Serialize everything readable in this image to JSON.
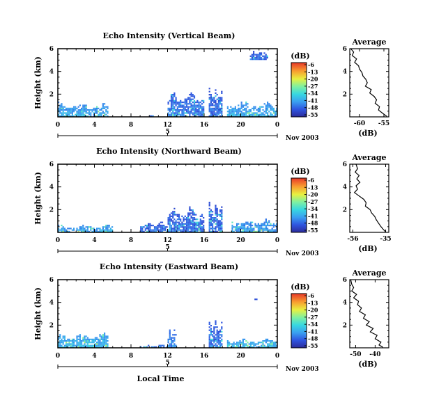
{
  "chart_data": [
    {
      "type": "heatmap",
      "title": "Echo Intensity (Vertical Beam)",
      "ylabel": "Height (km)",
      "x_ticks": [
        "0",
        "4",
        "8",
        "12",
        "16",
        "20",
        "0"
      ],
      "y_ticks": [
        "6",
        "4",
        "2"
      ],
      "xlim": [
        0,
        24
      ],
      "ylim": [
        0,
        6
      ],
      "date_marker": "5",
      "date_label": "Nov 2003",
      "colorbar": {
        "label": "(dB)",
        "ticks": [
          "-6",
          "-13",
          "-20",
          "-27",
          "-34",
          "-41",
          "-48",
          "-55"
        ]
      },
      "echo_regions": [
        {
          "x": [
            0,
            5.5
          ],
          "y": [
            0,
            1.5
          ],
          "level": 0.22
        },
        {
          "x": [
            10,
            10.5
          ],
          "y": [
            0,
            0.4
          ],
          "level": 0.15
        },
        {
          "x": [
            12,
            16
          ],
          "y": [
            0,
            2.6
          ],
          "level": 0.12
        },
        {
          "x": [
            16.5,
            18
          ],
          "y": [
            0,
            3.0
          ],
          "level": 0.1
        },
        {
          "x": [
            18.5,
            24
          ],
          "y": [
            0,
            1.6
          ],
          "level": 0.22
        },
        {
          "x": [
            21,
            23
          ],
          "y": [
            5.0,
            6.0
          ],
          "level": 0.1
        }
      ],
      "profile": {
        "title": "Average",
        "xlabel": "(dB)",
        "x_ticks": [
          "-60",
          "-55"
        ],
        "y_ticks": [
          "6",
          "4",
          "2"
        ],
        "xlim": [
          -62,
          -54
        ],
        "points": [
          [
            -61.8,
            6.0
          ],
          [
            -61.2,
            5.7
          ],
          [
            -61.5,
            5.4
          ],
          [
            -60.6,
            5.1
          ],
          [
            -61.0,
            4.8
          ],
          [
            -60.2,
            4.5
          ],
          [
            -60.0,
            4.2
          ],
          [
            -59.5,
            3.9
          ],
          [
            -59.3,
            3.6
          ],
          [
            -58.7,
            3.3
          ],
          [
            -58.4,
            3.0
          ],
          [
            -58.8,
            2.7
          ],
          [
            -57.6,
            2.4
          ],
          [
            -57.9,
            2.1
          ],
          [
            -57.0,
            1.8
          ],
          [
            -56.5,
            1.5
          ],
          [
            -56.8,
            1.2
          ],
          [
            -55.9,
            0.9
          ],
          [
            -56.1,
            0.6
          ],
          [
            -55.2,
            0.3
          ],
          [
            -54.4,
            0.05
          ]
        ]
      }
    },
    {
      "type": "heatmap",
      "title": "Echo Intensity (Northward Beam)",
      "ylabel": "Height (km)",
      "x_ticks": [
        "0",
        "4",
        "8",
        "12",
        "16",
        "20",
        "0"
      ],
      "y_ticks": [
        "6",
        "4",
        "2"
      ],
      "xlim": [
        0,
        24
      ],
      "ylim": [
        0,
        6
      ],
      "date_marker": "5",
      "date_label": "Nov 2003",
      "colorbar": {
        "label": "(dB)",
        "ticks": [
          "-6",
          "-13",
          "-20",
          "-27",
          "-34",
          "-41",
          "-48",
          "-55"
        ]
      },
      "echo_regions": [
        {
          "x": [
            0,
            6
          ],
          "y": [
            0,
            0.8
          ],
          "level": 0.22
        },
        {
          "x": [
            9,
            12
          ],
          "y": [
            0,
            1.2
          ],
          "level": 0.1
        },
        {
          "x": [
            12,
            16
          ],
          "y": [
            0,
            2.5
          ],
          "level": 0.1
        },
        {
          "x": [
            16.5,
            18
          ],
          "y": [
            0,
            3.0
          ],
          "level": 0.1
        },
        {
          "x": [
            19,
            24
          ],
          "y": [
            0,
            1.4
          ],
          "level": 0.2
        }
      ],
      "profile": {
        "title": "Average",
        "xlabel": "(dB)",
        "x_ticks": [
          "-56",
          "-35"
        ],
        "y_ticks": [
          "6",
          "4",
          "2"
        ],
        "xlim": [
          -58,
          -33
        ],
        "points": [
          [
            -54.0,
            6.0
          ],
          [
            -53.0,
            5.6
          ],
          [
            -54.5,
            5.3
          ],
          [
            -52.0,
            5.0
          ],
          [
            -53.5,
            4.7
          ],
          [
            -51.5,
            4.4
          ],
          [
            -54.0,
            4.1
          ],
          [
            -53.0,
            3.8
          ],
          [
            -55.0,
            3.5
          ],
          [
            -52.0,
            3.2
          ],
          [
            -49.0,
            2.9
          ],
          [
            -47.5,
            2.6
          ],
          [
            -48.0,
            2.3
          ],
          [
            -45.0,
            2.0
          ],
          [
            -44.0,
            1.7
          ],
          [
            -42.0,
            1.4
          ],
          [
            -41.0,
            1.1
          ],
          [
            -39.5,
            0.8
          ],
          [
            -38.0,
            0.5
          ],
          [
            -36.5,
            0.25
          ],
          [
            -35.0,
            0.05
          ]
        ]
      }
    },
    {
      "type": "heatmap",
      "title": "Echo Intensity (Eastward Beam)",
      "ylabel": "Height (km)",
      "xlabel": "Local Time",
      "x_ticks": [
        "0",
        "4",
        "8",
        "12",
        "16",
        "20",
        "0"
      ],
      "y_ticks": [
        "6",
        "4",
        "2"
      ],
      "xlim": [
        0,
        24
      ],
      "ylim": [
        0,
        6
      ],
      "date_marker": "5",
      "date_label": "Nov 2003",
      "colorbar": {
        "label": "(dB)",
        "ticks": [
          "-6",
          "-13",
          "-20",
          "-27",
          "-34",
          "-41",
          "-48",
          "-55"
        ]
      },
      "echo_regions": [
        {
          "x": [
            0,
            5.5
          ],
          "y": [
            0,
            1.6
          ],
          "level": 0.25
        },
        {
          "x": [
            9,
            12
          ],
          "y": [
            0,
            0.4
          ],
          "level": 0.15
        },
        {
          "x": [
            12,
            13
          ],
          "y": [
            0,
            2.0
          ],
          "level": 0.15
        },
        {
          "x": [
            16.5,
            18
          ],
          "y": [
            0,
            2.8
          ],
          "level": 0.12
        },
        {
          "x": [
            18.5,
            24
          ],
          "y": [
            0,
            1.0
          ],
          "level": 0.25
        },
        {
          "x": [
            21.5,
            22
          ],
          "y": [
            4.2,
            4.5
          ],
          "level": 0.1
        }
      ],
      "profile": {
        "title": "Average",
        "xlabel": "(dB)",
        "x_ticks": [
          "-50",
          "-40"
        ],
        "y_ticks": [
          "6",
          "4",
          "2"
        ],
        "xlim": [
          -53,
          -33
        ],
        "points": [
          [
            -52.5,
            6.0
          ],
          [
            -52.0,
            5.6
          ],
          [
            -51.0,
            5.3
          ],
          [
            -52.0,
            5.0
          ],
          [
            -49.5,
            4.7
          ],
          [
            -51.0,
            4.4
          ],
          [
            -48.5,
            4.1
          ],
          [
            -49.0,
            3.8
          ],
          [
            -47.0,
            3.5
          ],
          [
            -48.0,
            3.2
          ],
          [
            -45.0,
            2.9
          ],
          [
            -46.0,
            2.6
          ],
          [
            -43.0,
            2.3
          ],
          [
            -44.5,
            2.0
          ],
          [
            -41.0,
            1.7
          ],
          [
            -42.5,
            1.4
          ],
          [
            -39.0,
            1.1
          ],
          [
            -40.0,
            0.8
          ],
          [
            -37.0,
            0.5
          ],
          [
            -38.0,
            0.25
          ],
          [
            -36.0,
            0.05
          ]
        ]
      }
    }
  ]
}
